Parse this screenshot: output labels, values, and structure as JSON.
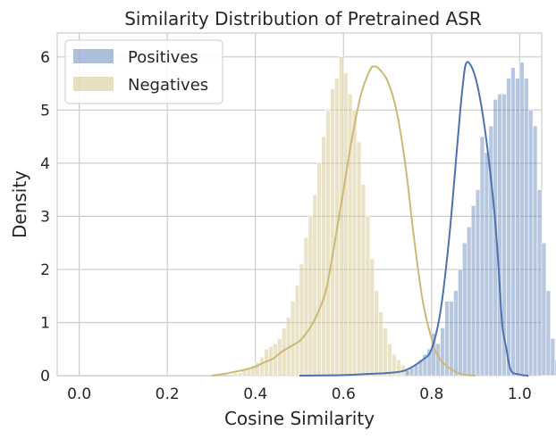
{
  "chart_data": {
    "type": "histogram",
    "title": "Similarity Distribution of Pretrained ASR",
    "xlabel": "Cosine Similarity",
    "ylabel": "Density",
    "xlim": [
      -0.05,
      1.05
    ],
    "ylim": [
      0,
      6.45
    ],
    "xticks": [
      "0.0",
      "0.2",
      "0.4",
      "0.6",
      "0.8",
      "1.0"
    ],
    "yticks": [
      "0",
      "1",
      "2",
      "3",
      "4",
      "5",
      "6"
    ],
    "xtick_values": [
      0.0,
      0.2,
      0.4,
      0.6,
      0.8,
      1.0
    ],
    "ytick_values": [
      0,
      1,
      2,
      3,
      4,
      5,
      6
    ],
    "grid": true,
    "legend_position": "top-left",
    "bin_width": 0.01,
    "series": [
      {
        "name": "Positives",
        "color": "#4c72b0",
        "bar_alpha": 0.4,
        "bin_start": 0.74,
        "hist": [
          0.1,
          0.15,
          0.2,
          0.3,
          0.4,
          0.5,
          0.8,
          0.6,
          0.9,
          1.4,
          1.4,
          1.6,
          2.0,
          2.5,
          2.8,
          3.2,
          3.5,
          4.5,
          4.2,
          4.7,
          5.2,
          5.3,
          5.3,
          5.6,
          5.8,
          5.6,
          5.9,
          5.6,
          5.0,
          4.7,
          3.5,
          2.5,
          1.6,
          0.7,
          0.3
        ],
        "kde_x": [
          0.5,
          0.6,
          0.65,
          0.7,
          0.74,
          0.78,
          0.8,
          0.82,
          0.84,
          0.86,
          0.87,
          0.88,
          0.9,
          0.92,
          0.94,
          0.95,
          0.96,
          0.97,
          0.98,
          1.0,
          1.02
        ],
        "kde_y": [
          0,
          0.01,
          0.03,
          0.05,
          0.1,
          0.3,
          0.5,
          1.2,
          2.6,
          4.5,
          5.4,
          5.9,
          5.6,
          4.7,
          3.3,
          2.3,
          1.0,
          0.5,
          0.1,
          0.02,
          0
        ]
      },
      {
        "name": "Negatives",
        "color": "#ccb974",
        "bar_alpha": 0.4,
        "bin_start": 0.35,
        "hist": [
          0.05,
          0.05,
          0.1,
          0.15,
          0.2,
          0.25,
          0.35,
          0.5,
          0.55,
          0.6,
          0.7,
          0.9,
          1.1,
          1.4,
          1.7,
          2.1,
          2.6,
          3.0,
          3.4,
          4.0,
          4.5,
          5.0,
          5.4,
          5.6,
          6.0,
          5.7,
          5.3,
          5.0,
          4.4,
          3.6,
          3.0,
          2.2,
          1.6,
          1.2,
          0.9,
          0.6,
          0.4,
          0.3,
          0.2,
          0.1
        ],
        "kde_x": [
          0.3,
          0.34,
          0.38,
          0.4,
          0.42,
          0.44,
          0.46,
          0.48,
          0.5,
          0.52,
          0.54,
          0.56,
          0.58,
          0.6,
          0.62,
          0.64,
          0.66,
          0.67,
          0.68,
          0.7,
          0.72,
          0.74,
          0.76,
          0.78,
          0.8,
          0.82,
          0.86,
          0.9
        ],
        "kde_y": [
          0,
          0.05,
          0.12,
          0.17,
          0.25,
          0.32,
          0.45,
          0.55,
          0.65,
          0.85,
          1.15,
          1.6,
          2.5,
          3.5,
          4.5,
          5.3,
          5.75,
          5.82,
          5.78,
          5.55,
          5.0,
          4.0,
          2.6,
          1.4,
          0.7,
          0.3,
          0.05,
          0
        ]
      }
    ]
  }
}
